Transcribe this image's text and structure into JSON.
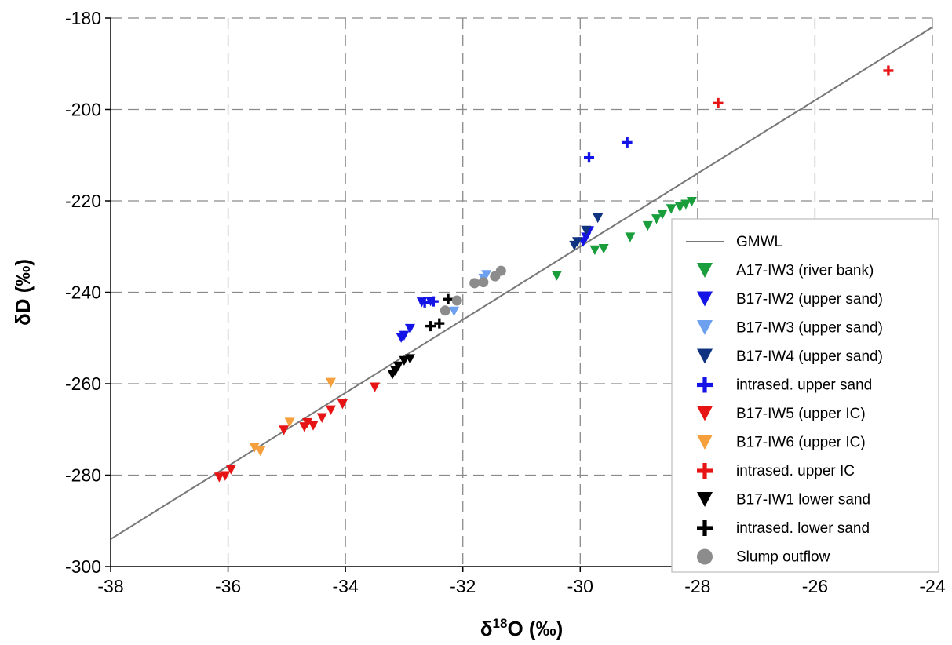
{
  "chart_data": {
    "type": "scatter",
    "title": "",
    "xlabel": "δ18O (‰)",
    "xlabel_parts": {
      "pre": "δ",
      "sup": "18",
      "post": "O (‰)"
    },
    "ylabel": "δD (‰)",
    "xlim": [
      -38,
      -24
    ],
    "ylim": [
      -300,
      -180
    ],
    "x_ticks": [
      -38,
      -36,
      -34,
      -32,
      -30,
      -28,
      -26,
      -24
    ],
    "y_ticks": [
      -300,
      -280,
      -260,
      -240,
      -220,
      -200,
      -180
    ],
    "grid": true,
    "legend_position": "right",
    "reference_line": {
      "name": "GMWL",
      "slope": 8,
      "intercept": 10,
      "color": "#777777"
    },
    "series": [
      {
        "name": "A17-IW3 (river bank)",
        "marker": "triangle-down",
        "color": "#1a9e3c",
        "points": [
          [
            -28.1,
            -220.2
          ],
          [
            -28.2,
            -220.8
          ],
          [
            -28.3,
            -221.4
          ],
          [
            -28.45,
            -221.8
          ],
          [
            -28.6,
            -223.0
          ],
          [
            -28.7,
            -224.0
          ],
          [
            -28.85,
            -225.5
          ],
          [
            -29.15,
            -228.0
          ],
          [
            -29.6,
            -230.5
          ],
          [
            -29.75,
            -230.8
          ],
          [
            -30.4,
            -236.4
          ]
        ]
      },
      {
        "name": "B17-IW2 (upper sand)",
        "marker": "triangle-down",
        "color": "#1414e6",
        "points": [
          [
            -29.85,
            -226.6
          ],
          [
            -29.9,
            -228.0
          ],
          [
            -29.95,
            -229.0
          ],
          [
            -32.55,
            -242.0
          ],
          [
            -32.7,
            -242.2
          ],
          [
            -32.9,
            -248.0
          ],
          [
            -33.0,
            -249.5
          ],
          [
            -33.05,
            -250.0
          ]
        ]
      },
      {
        "name": "B17-IW3 (upper sand)",
        "marker": "triangle-down",
        "color": "#6ea0f0",
        "points": [
          [
            -31.6,
            -236.2
          ],
          [
            -31.65,
            -237.0
          ],
          [
            -32.15,
            -244.2
          ]
        ]
      },
      {
        "name": "B17-IW4 (upper sand)",
        "marker": "triangle-down",
        "color": "#0f3380",
        "points": [
          [
            -29.7,
            -223.8
          ],
          [
            -29.9,
            -226.5
          ],
          [
            -30.05,
            -229.0
          ],
          [
            -30.1,
            -229.8
          ]
        ]
      },
      {
        "name": "intrased. upper sand",
        "marker": "plus",
        "color": "#1414e6",
        "points": [
          [
            -29.2,
            -207.2
          ],
          [
            -29.85,
            -210.5
          ],
          [
            -32.5,
            -242.0
          ],
          [
            -32.65,
            -242.2
          ]
        ]
      },
      {
        "name": "B17-IW5 (upper IC)",
        "marker": "triangle-down",
        "color": "#e61414",
        "points": [
          [
            -33.5,
            -260.8
          ],
          [
            -34.05,
            -264.5
          ],
          [
            -34.25,
            -265.8
          ],
          [
            -34.4,
            -267.5
          ],
          [
            -34.55,
            -269.2
          ],
          [
            -34.65,
            -268.6
          ],
          [
            -34.7,
            -269.5
          ],
          [
            -35.05,
            -270.2
          ],
          [
            -35.95,
            -278.8
          ],
          [
            -36.05,
            -280.2
          ],
          [
            -36.15,
            -280.5
          ]
        ]
      },
      {
        "name": "B17-IW6 (upper IC)",
        "marker": "triangle-down",
        "color": "#f5a03c",
        "points": [
          [
            -34.25,
            -259.8
          ],
          [
            -34.95,
            -268.5
          ],
          [
            -35.45,
            -274.8
          ],
          [
            -35.55,
            -274.0
          ]
        ]
      },
      {
        "name": "intrased. upper IC",
        "marker": "plus",
        "color": "#e61414",
        "points": [
          [
            -24.75,
            -191.5
          ],
          [
            -27.65,
            -198.6
          ]
        ]
      },
      {
        "name": "B17-IW1 lower sand",
        "marker": "triangle-down",
        "color": "#000000",
        "points": [
          [
            -32.9,
            -254.6
          ],
          [
            -33.0,
            -255.0
          ],
          [
            -33.1,
            -256.2
          ],
          [
            -33.15,
            -257.2
          ],
          [
            -33.2,
            -258.0
          ]
        ]
      },
      {
        "name": "intrased. lower sand",
        "marker": "plus",
        "color": "#000000",
        "points": [
          [
            -32.25,
            -241.5
          ],
          [
            -32.4,
            -246.8
          ],
          [
            -32.55,
            -247.4
          ]
        ]
      },
      {
        "name": "Slump outflow",
        "marker": "circle",
        "color": "#8c8c8c",
        "points": [
          [
            -31.35,
            -235.3
          ],
          [
            -31.45,
            -236.5
          ],
          [
            -31.65,
            -237.8
          ],
          [
            -31.8,
            -238.0
          ],
          [
            -32.1,
            -241.8
          ],
          [
            -32.3,
            -244.0
          ]
        ]
      }
    ]
  }
}
